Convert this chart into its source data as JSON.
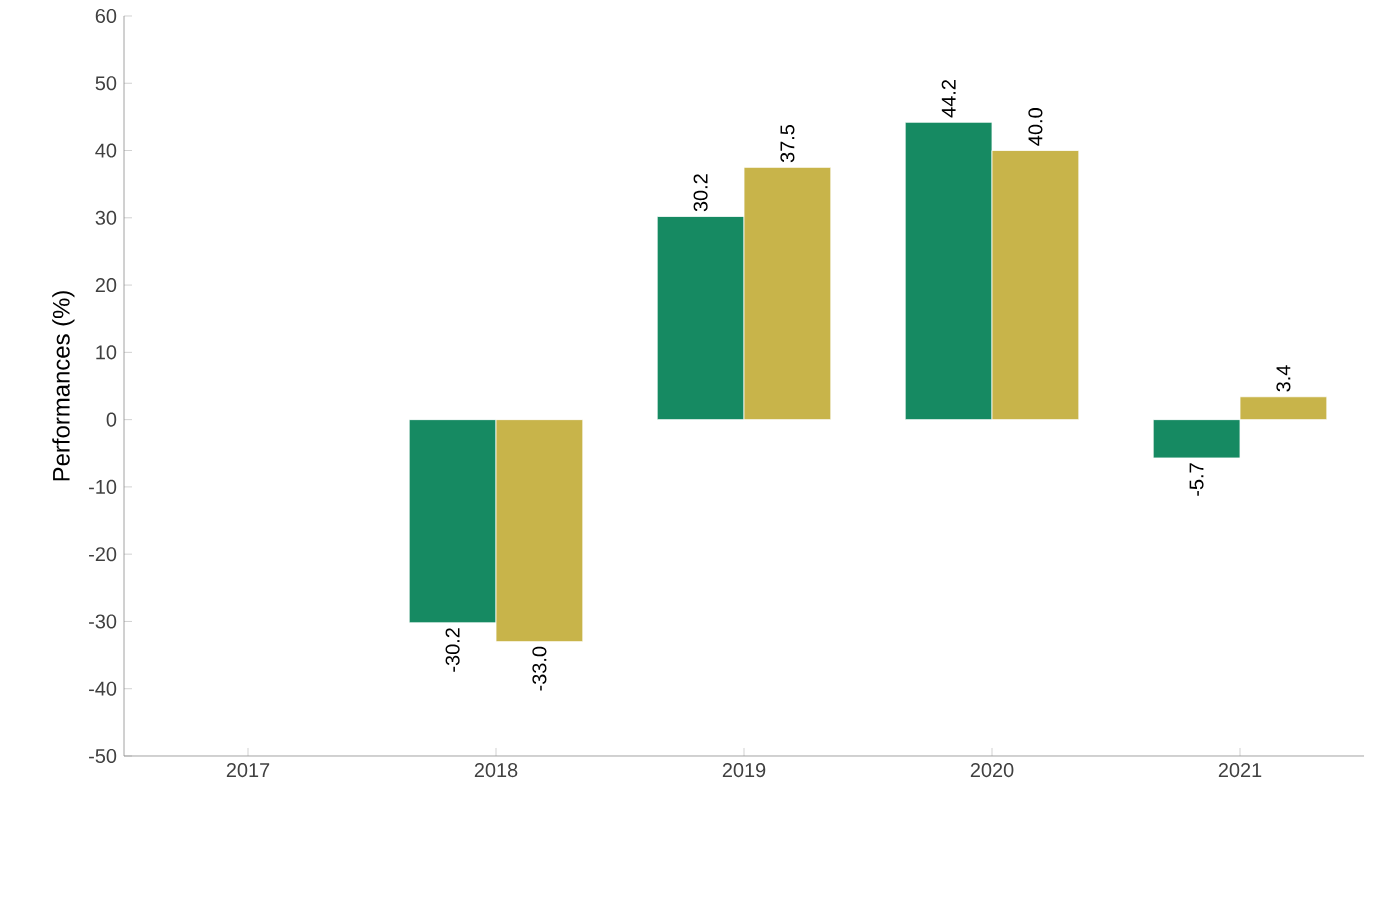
{
  "chart_data": {
    "type": "bar",
    "ylabel": "Performances (%)",
    "categories": [
      "2017",
      "2018",
      "2019",
      "2020",
      "2021"
    ],
    "series": [
      {
        "color": "#168a62",
        "values": [
          null,
          -30.2,
          30.2,
          44.2,
          -5.7
        ],
        "value_labels": [
          null,
          "-30.2",
          "30.2",
          "44.2",
          "-5.7"
        ]
      },
      {
        "color": "#c8b44a",
        "values": [
          null,
          -33.0,
          37.5,
          40.0,
          3.4
        ],
        "value_labels": [
          null,
          "-33.0",
          "37.5",
          "40.0",
          "3.4"
        ]
      }
    ],
    "ylim": [
      -50,
      60
    ],
    "yticks": [
      -50,
      -40,
      -30,
      -20,
      -10,
      0,
      10,
      20,
      30,
      40,
      50,
      60
    ]
  }
}
